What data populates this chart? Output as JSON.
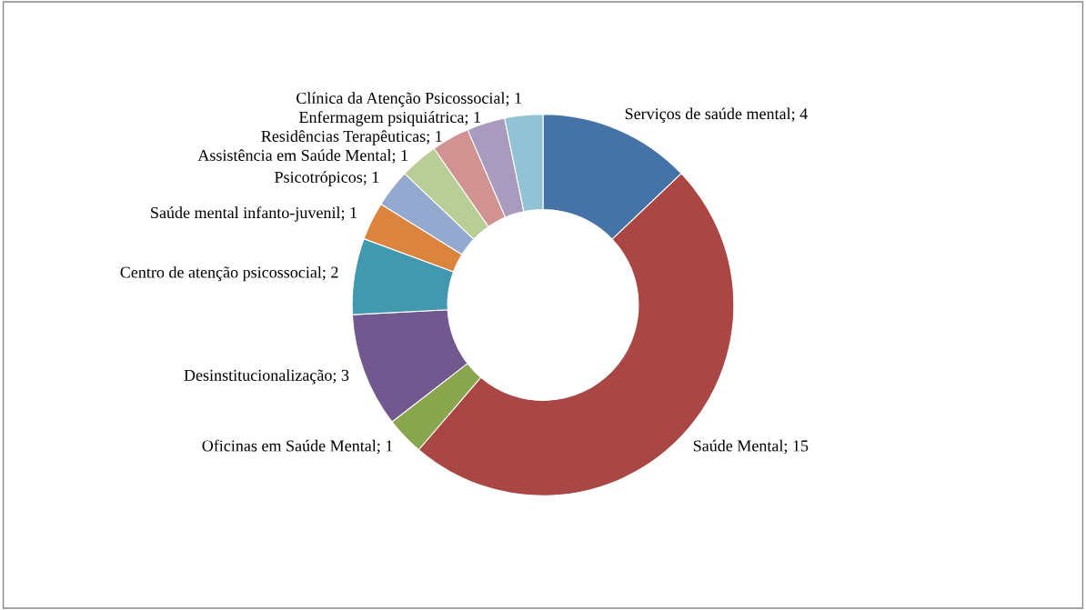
{
  "chart_data": {
    "type": "donut",
    "categories": [
      "Serviços de saúde mental",
      "Saúde Mental",
      "Oficinas em Saúde Mental",
      "Desinstitucionalização",
      "Centro de atenção psicossocial",
      "Saúde mental infanto-juvenil",
      "Psicotrópicos",
      "Assistência em Saúde Mental",
      "Residências Terapêuticas",
      "Enfermagem psiquiátrica",
      "Clínica da Atenção Psicossocial"
    ],
    "values": [
      4,
      15,
      1,
      3,
      2,
      1,
      1,
      1,
      1,
      1,
      1
    ],
    "colors": [
      "#4572a7",
      "#aa4643",
      "#89a54e",
      "#71588f",
      "#4198af",
      "#db843d",
      "#93a9cf",
      "#b9cd96",
      "#d09392",
      "#a99bbd",
      "#92c3d5"
    ],
    "value_labels": [
      "; 4",
      "; 15",
      "; 1",
      "; 3",
      "; 2",
      "; 1",
      "; 1",
      "; 1",
      "; 1",
      "; 1",
      "; 1"
    ],
    "legend": false
  }
}
